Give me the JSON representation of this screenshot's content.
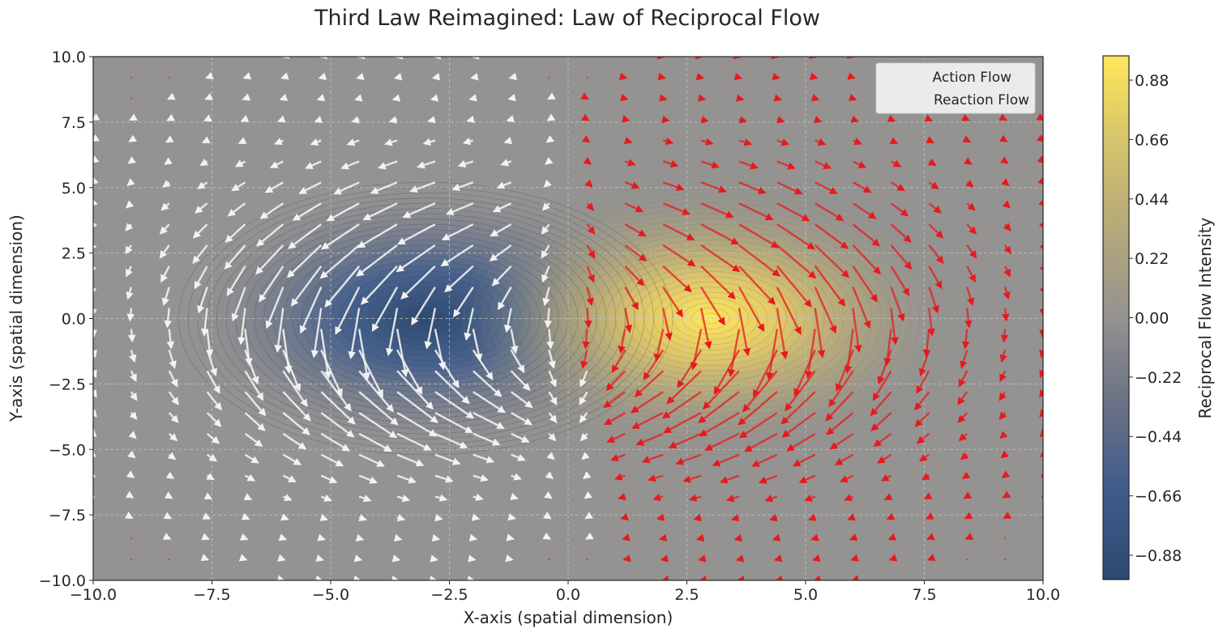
{
  "chart_data": {
    "type": "quiver-contour",
    "title": "Third Law Reimagined: Law of Reciprocal Flow",
    "xlabel": "X-axis (spatial dimension)",
    "ylabel": "Y-axis (spatial dimension)",
    "xlim": [
      -10,
      10
    ],
    "ylim": [
      -10,
      10
    ],
    "x_ticks": [
      "−10.0",
      "−7.5",
      "−5.0",
      "−2.5",
      "0.0",
      "2.5",
      "5.0",
      "7.5",
      "10.0"
    ],
    "y_ticks": [
      "−10.0",
      "−7.5",
      "−5.0",
      "−2.5",
      "0.0",
      "2.5",
      "5.0",
      "7.5",
      "10.0"
    ],
    "x_tick_values": [
      -10,
      -7.5,
      -5,
      -2.5,
      0,
      2.5,
      5,
      7.5,
      10
    ],
    "y_tick_values": [
      -10,
      -7.5,
      -5,
      -2.5,
      0,
      2.5,
      5,
      7.5,
      10
    ],
    "grid": true,
    "legend_position": "top-right",
    "series": [
      {
        "name": "Action Flow",
        "color": "#f2f2f2",
        "center": [
          -3,
          0
        ]
      },
      {
        "name": "Reaction Flow",
        "color": "#e8191e",
        "center": [
          3,
          0
        ]
      }
    ],
    "field": {
      "description_source": "two Gaussian sources",
      "negative_center": [
        -3,
        0
      ],
      "positive_center": [
        3,
        0
      ],
      "range": [
        -1,
        1
      ]
    },
    "colorbar": {
      "label": "Reciprocal Flow Intensity",
      "ticks": [
        "0.88",
        "0.66",
        "0.44",
        "0.22",
        "0.00",
        "−0.22",
        "−0.44",
        "−0.66",
        "−0.88"
      ],
      "tick_values": [
        0.88,
        0.66,
        0.44,
        0.22,
        0.0,
        -0.22,
        -0.44,
        -0.66,
        -0.88
      ],
      "range": [
        -0.97,
        0.97
      ],
      "colormap": "cividis",
      "colors": [
        "#2d4a72",
        "#3f5b8c",
        "#6e7484",
        "#949291",
        "#b4a97a",
        "#d5c46b",
        "#ffe75b"
      ]
    },
    "plot_background": "#949391"
  }
}
